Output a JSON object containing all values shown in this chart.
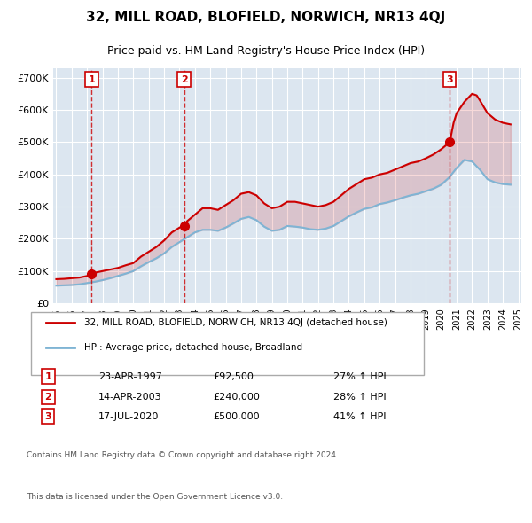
{
  "title": "32, MILL ROAD, BLOFIELD, NORWICH, NR13 4QJ",
  "subtitle": "Price paid vs. HM Land Registry's House Price Index (HPI)",
  "footer_line1": "Contains HM Land Registry data © Crown copyright and database right 2024.",
  "footer_line2": "This data is licensed under the Open Government Licence v3.0.",
  "legend_label_red": "32, MILL ROAD, BLOFIELD, NORWICH, NR13 4QJ (detached house)",
  "legend_label_blue": "HPI: Average price, detached house, Broadland",
  "transactions": [
    {
      "label": "1",
      "date": "23-APR-1997",
      "price": 92500,
      "hpi_pct": "27% ↑ HPI",
      "year": 1997.3
    },
    {
      "label": "2",
      "date": "14-APR-2003",
      "price": 240000,
      "hpi_pct": "28% ↑ HPI",
      "year": 2003.3
    },
    {
      "label": "3",
      "date": "17-JUL-2020",
      "price": 500000,
      "hpi_pct": "41% ↑ HPI",
      "year": 2020.55
    }
  ],
  "red_line_x": [
    1995.0,
    1995.5,
    1996.0,
    1996.5,
    1997.0,
    1997.3,
    1997.5,
    1998.0,
    1998.5,
    1999.0,
    1999.5,
    2000.0,
    2000.5,
    2001.0,
    2001.5,
    2002.0,
    2002.5,
    2003.0,
    2003.3,
    2003.5,
    2004.0,
    2004.5,
    2005.0,
    2005.5,
    2006.0,
    2006.5,
    2007.0,
    2007.5,
    2008.0,
    2008.5,
    2009.0,
    2009.5,
    2010.0,
    2010.5,
    2011.0,
    2011.5,
    2012.0,
    2012.5,
    2013.0,
    2013.5,
    2014.0,
    2014.5,
    2015.0,
    2015.5,
    2016.0,
    2016.5,
    2017.0,
    2017.5,
    2018.0,
    2018.5,
    2019.0,
    2019.5,
    2020.0,
    2020.55,
    2020.8,
    2021.0,
    2021.5,
    2022.0,
    2022.3,
    2022.5,
    2023.0,
    2023.5,
    2024.0,
    2024.5
  ],
  "red_line_y": [
    75000,
    76000,
    78000,
    80000,
    85000,
    92500,
    95000,
    100000,
    105000,
    110000,
    118000,
    125000,
    145000,
    160000,
    175000,
    195000,
    220000,
    235000,
    240000,
    255000,
    275000,
    295000,
    295000,
    290000,
    305000,
    320000,
    340000,
    345000,
    335000,
    310000,
    295000,
    300000,
    315000,
    315000,
    310000,
    305000,
    300000,
    305000,
    315000,
    335000,
    355000,
    370000,
    385000,
    390000,
    400000,
    405000,
    415000,
    425000,
    435000,
    440000,
    450000,
    462000,
    478000,
    500000,
    560000,
    590000,
    625000,
    650000,
    645000,
    630000,
    590000,
    570000,
    560000,
    555000
  ],
  "blue_line_x": [
    1995.0,
    1995.5,
    1996.0,
    1996.5,
    1997.0,
    1997.5,
    1998.0,
    1998.5,
    1999.0,
    1999.5,
    2000.0,
    2000.5,
    2001.0,
    2001.5,
    2002.0,
    2002.5,
    2003.0,
    2003.5,
    2004.0,
    2004.5,
    2005.0,
    2005.5,
    2006.0,
    2006.5,
    2007.0,
    2007.5,
    2008.0,
    2008.5,
    2009.0,
    2009.5,
    2010.0,
    2010.5,
    2011.0,
    2011.5,
    2012.0,
    2012.5,
    2013.0,
    2013.5,
    2014.0,
    2014.5,
    2015.0,
    2015.5,
    2016.0,
    2016.5,
    2017.0,
    2017.5,
    2018.0,
    2018.5,
    2019.0,
    2019.5,
    2020.0,
    2020.5,
    2021.0,
    2021.5,
    2022.0,
    2022.5,
    2023.0,
    2023.5,
    2024.0,
    2024.5
  ],
  "blue_line_y": [
    55000,
    56000,
    57000,
    59000,
    63000,
    67000,
    72000,
    78000,
    85000,
    92000,
    100000,
    115000,
    128000,
    140000,
    155000,
    175000,
    190000,
    205000,
    220000,
    228000,
    228000,
    225000,
    235000,
    248000,
    262000,
    268000,
    258000,
    238000,
    225000,
    228000,
    240000,
    238000,
    235000,
    230000,
    228000,
    232000,
    240000,
    255000,
    270000,
    282000,
    293000,
    298000,
    308000,
    313000,
    320000,
    328000,
    335000,
    340000,
    348000,
    356000,
    368000,
    390000,
    420000,
    445000,
    440000,
    415000,
    385000,
    375000,
    370000,
    368000
  ],
  "xlim": [
    1994.8,
    2025.2
  ],
  "ylim": [
    0,
    730000
  ],
  "yticks": [
    0,
    100000,
    200000,
    300000,
    400000,
    500000,
    600000,
    700000
  ],
  "ytick_labels": [
    "£0",
    "£100K",
    "£200K",
    "£300K",
    "£400K",
    "£500K",
    "£600K",
    "£700K"
  ],
  "xticks": [
    1995,
    1996,
    1997,
    1998,
    1999,
    2000,
    2001,
    2002,
    2003,
    2004,
    2005,
    2006,
    2007,
    2008,
    2009,
    2010,
    2011,
    2012,
    2013,
    2014,
    2015,
    2016,
    2017,
    2018,
    2019,
    2020,
    2021,
    2022,
    2023,
    2024,
    2025
  ],
  "background_color": "#e8eef5",
  "plot_bg_color": "#dce6f0",
  "grid_color": "#ffffff",
  "red_color": "#cc0000",
  "blue_color": "#7fb4d4"
}
